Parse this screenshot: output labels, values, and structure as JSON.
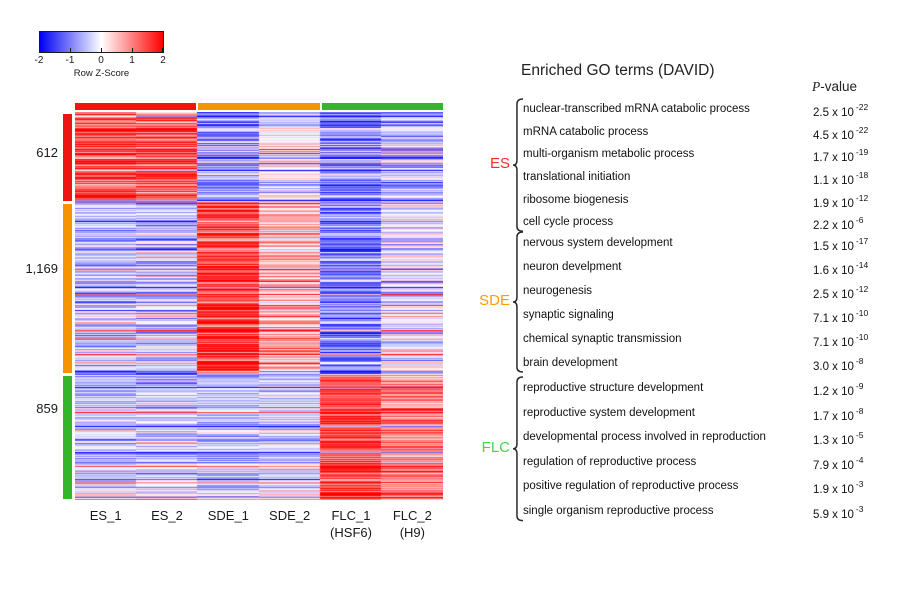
{
  "legend": {
    "label": "Row Z-Score",
    "ticks": [
      "-2",
      "-1",
      "0",
      "1",
      "2"
    ],
    "min_color": "#0000f5",
    "mid_color": "#ffffff",
    "max_color": "#ff0000"
  },
  "heatmap": {
    "column_labels": [
      {
        "line1": "ES_1",
        "line2": ""
      },
      {
        "line1": "ES_2",
        "line2": ""
      },
      {
        "line1": "SDE_1",
        "line2": ""
      },
      {
        "line1": "SDE_2",
        "line2": ""
      },
      {
        "line1": "FLC_1",
        "line2": "(HSF6)"
      },
      {
        "line1": "FLC_2",
        "line2": "(H9)"
      }
    ],
    "cluster_counts": [
      "612",
      "1,169",
      "859"
    ]
  },
  "go_panel": {
    "title": "Enriched GO terms (DAVID)",
    "pvalue_header_italic": "P",
    "pvalue_header_rest": "-value",
    "groups": [
      {
        "label": "ES",
        "color": "#fb2c20",
        "terms": [
          {
            "name": "nuclear-transcribed mRNA catabolic process",
            "p_coef": "2.5",
            "p_exp": "-22"
          },
          {
            "name": "mRNA catabolic process",
            "p_coef": "4.5",
            "p_exp": "-22"
          },
          {
            "name": "multi-organism metabolic process",
            "p_coef": "1.7",
            "p_exp": "-19"
          },
          {
            "name": "translational initiation",
            "p_coef": "1.1",
            "p_exp": "-18"
          },
          {
            "name": "ribosome biogenesis",
            "p_coef": "1.9",
            "p_exp": "-12"
          },
          {
            "name": "cell cycle process",
            "p_coef": "2.2",
            "p_exp": "-6"
          }
        ]
      },
      {
        "label": "SDE",
        "color": "#ff9c00",
        "terms": [
          {
            "name": "nervous system development",
            "p_coef": "1.5",
            "p_exp": "-17"
          },
          {
            "name": "neuron develpment",
            "p_coef": "1.6",
            "p_exp": "-14"
          },
          {
            "name": "neurogenesis",
            "p_coef": "2.5",
            "p_exp": "-12"
          },
          {
            "name": "synaptic signaling",
            "p_coef": "7.1",
            "p_exp": "-10"
          },
          {
            "name": "chemical synaptic transmission",
            "p_coef": "7.1",
            "p_exp": "-10"
          },
          {
            "name": "brain development",
            "p_coef": "3.0",
            "p_exp": "-8"
          }
        ]
      },
      {
        "label": "FLC",
        "color": "#3cdc41",
        "terms": [
          {
            "name": "reproductive structure development",
            "p_coef": "1.2",
            "p_exp": "-9"
          },
          {
            "name": "reproductive system development",
            "p_coef": "1.7",
            "p_exp": "-8"
          },
          {
            "name": "developmental process involved in reproduction",
            "p_coef": "1.3",
            "p_exp": "-5"
          },
          {
            "name": "regulation of reproductive process",
            "p_coef": "7.9",
            "p_exp": "-4"
          },
          {
            "name": "positive regulation of reproductive process",
            "p_coef": "1.9",
            "p_exp": "-3"
          },
          {
            "name": "single organism reproductive process",
            "p_coef": "5.9",
            "p_exp": "-3"
          }
        ]
      }
    ]
  },
  "chart_data": {
    "type": "heatmap",
    "title": "Row Z-Score heatmap of differentially expressed genes",
    "columns": [
      "ES_1",
      "ES_2",
      "SDE_1",
      "SDE_2",
      "FLC_1 (HSF6)",
      "FLC_2 (H9)"
    ],
    "column_groups": [
      {
        "name": "ES",
        "color": "#ee1511",
        "columns": [
          "ES_1",
          "ES_2"
        ]
      },
      {
        "name": "SDE",
        "color": "#f59300",
        "columns": [
          "SDE_1",
          "SDE_2"
        ]
      },
      {
        "name": "FLC",
        "color": "#35b62a",
        "columns": [
          "FLC_1 (HSF6)",
          "FLC_2 (H9)"
        ]
      }
    ],
    "row_clusters": [
      {
        "label": "612",
        "count": 612,
        "color": "#ee1511",
        "col_means": [
          1.35,
          1.25,
          -0.8,
          -0.1,
          -0.9,
          -0.55
        ]
      },
      {
        "label": "1,169",
        "count": 1169,
        "color": "#f59300",
        "col_means": [
          -0.45,
          -0.42,
          1.6,
          0.6,
          -1.0,
          -0.15
        ]
      },
      {
        "label": "859",
        "count": 859,
        "color": "#35b62a",
        "col_means": [
          -0.42,
          -0.38,
          -0.5,
          -0.35,
          1.5,
          0.95
        ]
      }
    ],
    "colorscale": {
      "min": -2,
      "max": 2,
      "min_color": "#0000f5",
      "mid_color": "#ffffff",
      "max_color": "#ff0000",
      "label": "Row Z-Score",
      "ticks": [
        -2,
        -1,
        0,
        1,
        2
      ]
    },
    "noise": {
      "row_sd": 0.38,
      "cell_sd": 0.3,
      "streak_prob": 0.08,
      "streak_amp": 1.3,
      "seed": 11
    },
    "legend_position": "top-left",
    "grid": false
  }
}
